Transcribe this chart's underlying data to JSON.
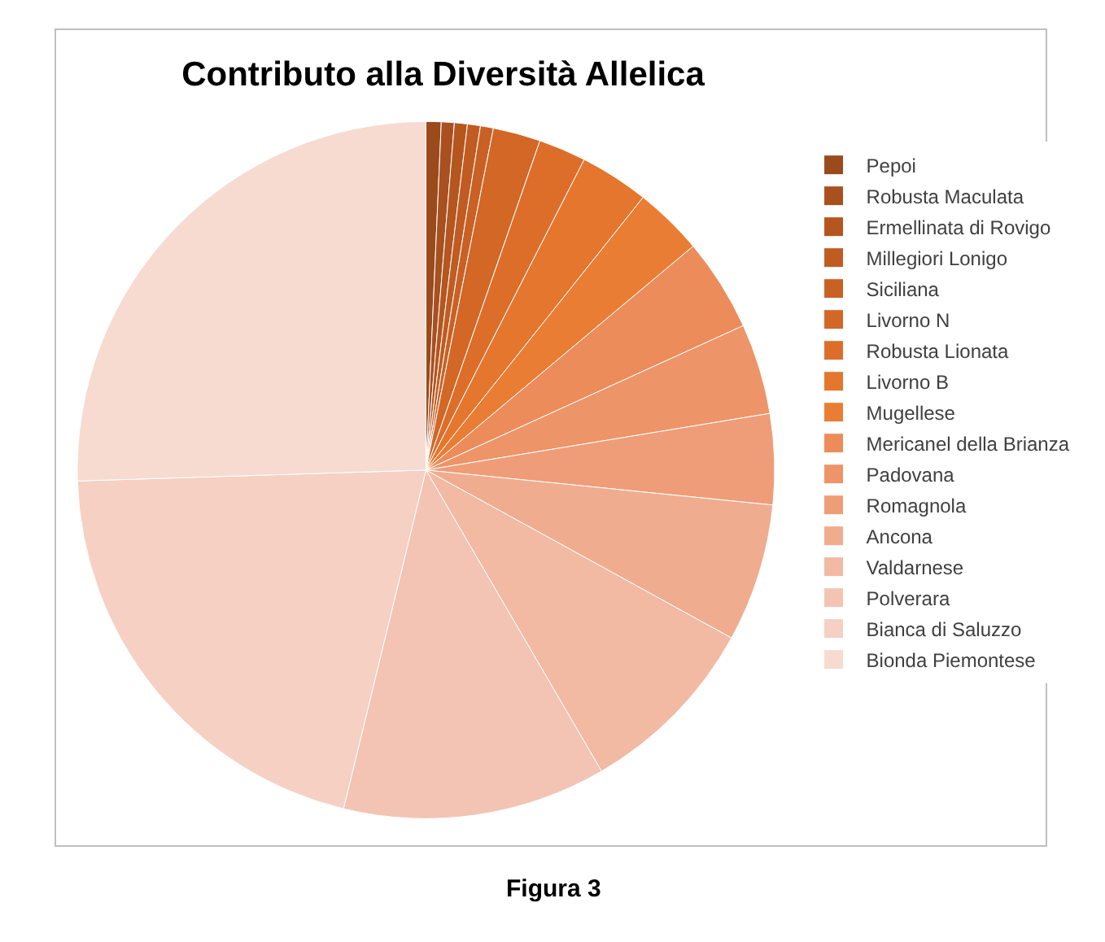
{
  "chart_data": {
    "type": "pie",
    "title": "Contributo alla Diversità Allelica",
    "categories": [
      "Pepoi",
      "Robusta Maculata",
      "Ermellinata di Rovigo",
      "Millegiori Lonigo",
      "Siciliana",
      "Livorno N",
      "Robusta Lionata",
      "Livorno B",
      "Mugellese",
      "Mericanel della Brianza",
      "Padovana",
      "Romagnola",
      "Ancona",
      "Valdarnese",
      "Polverara",
      "Bianca di Saluzzo",
      "Bionda Piemontese"
    ],
    "values": [
      0.7,
      0.6,
      0.6,
      0.6,
      0.6,
      2.2,
      2.2,
      3.2,
      3.2,
      4.3,
      4.2,
      4.2,
      6.4,
      8.6,
      12.2,
      20.7,
      25.5
    ],
    "colors": [
      "#9b4a1c",
      "#a85020",
      "#b5561f",
      "#c05c22",
      "#c96124",
      "#d26726",
      "#dd6e2a",
      "#e4762d",
      "#ea7d34",
      "#ec8c5a",
      "#ed9468",
      "#ee9d78",
      "#f0ac8f",
      "#f2b9a3",
      "#f3c4b3",
      "#f5d0c3",
      "#f7dbd0"
    ],
    "legend": "right",
    "annotations": [
      "Figura 3"
    ]
  }
}
